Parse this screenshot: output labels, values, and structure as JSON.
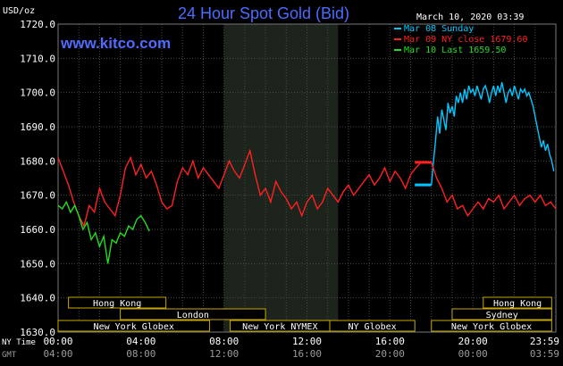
{
  "chart_data": {
    "type": "line",
    "title": "24 Hour Spot Gold (Bid)",
    "brand": "www.kitco.com",
    "ylabel": "USD/oz",
    "date_label": "March 10, 2020 03:39",
    "ylim": [
      1630,
      1720
    ],
    "yticks": [
      "1720.0",
      "1710.0",
      "1700.0",
      "1690.0",
      "1680.0",
      "1670.0",
      "1660.0",
      "1650.0",
      "1640.0",
      "1630.0"
    ],
    "xlim": [
      0,
      24
    ],
    "grid": true,
    "legend_position": "top-right",
    "time_rows": [
      {
        "label": "NY Time",
        "ticks": [
          "00:00",
          "04:00",
          "08:00",
          "12:00",
          "16:00",
          "20:00",
          "23:59"
        ]
      },
      {
        "label": "GMT",
        "ticks": [
          "04:00",
          "08:00",
          "12:00",
          "16:00",
          "20:00",
          "00:00",
          "03:59"
        ]
      }
    ],
    "shaded_hours": [
      8.0,
      13.5
    ],
    "legend": [
      {
        "text": "Mar 08 Sunday",
        "color": "#00c8ff"
      },
      {
        "text": "Mar 09 NY close 1679.60",
        "color": "#ff2020"
      },
      {
        "text": "Mar 10 Last 1659.50",
        "color": "#22dd22"
      }
    ],
    "sessions": [
      {
        "name": "Hong Kong",
        "row": 0,
        "start": 0.5,
        "end": 5.2
      },
      {
        "name": "London",
        "row": 1,
        "start": 3.0,
        "end": 10.0
      },
      {
        "name": "New York Globex",
        "row": 2,
        "start": 0.0,
        "end": 7.3
      },
      {
        "name": "New York NYMEX",
        "row": 2,
        "start": 8.3,
        "end": 13.1
      },
      {
        "name": "NY Globex",
        "row": 2,
        "start": 13.1,
        "end": 17.2
      },
      {
        "name": "Hong Kong",
        "row": 0,
        "start": 20.5,
        "end": 23.8
      },
      {
        "name": "Sydney",
        "row": 1,
        "start": 19.0,
        "end": 23.8
      },
      {
        "name": "New York Globex",
        "row": 2,
        "start": 18.0,
        "end": 23.8
      }
    ],
    "series": [
      {
        "name": "Mar 08 Sunday",
        "color": "#00c8ff",
        "x": [
          18.0,
          18.1,
          18.2,
          18.3,
          18.4,
          18.5,
          18.6,
          18.7,
          18.8,
          18.9,
          19.0,
          19.1,
          19.2,
          19.3,
          19.4,
          19.5,
          19.6,
          19.7,
          19.8,
          19.9,
          20.0,
          20.1,
          20.2,
          20.3,
          20.4,
          20.5,
          20.6,
          20.7,
          20.8,
          20.9,
          21.0,
          21.1,
          21.2,
          21.3,
          21.4,
          21.5,
          21.6,
          21.7,
          21.8,
          21.9,
          22.0,
          22.1,
          22.2,
          22.3,
          22.4,
          22.5,
          22.6,
          22.7,
          22.8,
          22.9,
          23.0,
          23.1,
          23.2,
          23.3,
          23.4,
          23.5,
          23.6,
          23.7,
          23.8,
          23.9
        ],
        "y": [
          1673,
          1680,
          1686,
          1693,
          1688,
          1695,
          1692,
          1689,
          1697,
          1694,
          1696,
          1693,
          1699,
          1697,
          1700,
          1697,
          1701,
          1698,
          1702,
          1700,
          1701,
          1699,
          1702,
          1700,
          1698,
          1701,
          1702,
          1700,
          1697,
          1700,
          1702,
          1699,
          1702,
          1700,
          1703,
          1700,
          1697,
          1700,
          1701,
          1699,
          1702,
          1700,
          1698,
          1701,
          1700,
          1701,
          1699,
          1700,
          1698,
          1696,
          1693,
          1690,
          1687,
          1684,
          1686,
          1683,
          1685,
          1682,
          1680,
          1677
        ]
      },
      {
        "name": "Mar 09 NY close 1679.60",
        "color": "#ff2020",
        "x": [
          0.0,
          0.25,
          0.5,
          0.75,
          1.0,
          1.25,
          1.5,
          1.75,
          2.0,
          2.25,
          2.5,
          2.75,
          3.0,
          3.25,
          3.5,
          3.75,
          4.0,
          4.25,
          4.5,
          4.75,
          5.0,
          5.25,
          5.5,
          5.75,
          6.0,
          6.25,
          6.5,
          6.75,
          7.0,
          7.25,
          7.5,
          7.75,
          8.0,
          8.25,
          8.5,
          8.75,
          9.0,
          9.25,
          9.5,
          9.75,
          10.0,
          10.25,
          10.5,
          10.75,
          11.0,
          11.25,
          11.5,
          11.75,
          12.0,
          12.25,
          12.5,
          12.75,
          13.0,
          13.25,
          13.5,
          13.75,
          14.0,
          14.25,
          14.5,
          14.75,
          15.0,
          15.25,
          15.5,
          15.75,
          16.0,
          16.25,
          16.5,
          16.75,
          17.0,
          17.25,
          17.5,
          17.75,
          18.0,
          18.25,
          18.5,
          18.75,
          19.0,
          19.25,
          19.5,
          19.75,
          20.0,
          20.25,
          20.5,
          20.75,
          21.0,
          21.25,
          21.5,
          21.75,
          22.0,
          22.25,
          22.5,
          22.75,
          23.0,
          23.25,
          23.5,
          23.75,
          24.0
        ],
        "y": [
          1681,
          1677,
          1673,
          1668,
          1664,
          1661,
          1667,
          1665,
          1672,
          1668,
          1666,
          1664,
          1670,
          1678,
          1681,
          1676,
          1679,
          1675,
          1677,
          1673,
          1668,
          1666,
          1667,
          1674,
          1678,
          1676,
          1680,
          1675,
          1678,
          1676,
          1674,
          1672,
          1676,
          1680,
          1677,
          1675,
          1679,
          1683,
          1676,
          1670,
          1672,
          1668,
          1674,
          1671,
          1669,
          1666,
          1668,
          1664,
          1668,
          1670,
          1666,
          1668,
          1672,
          1670,
          1668,
          1671,
          1673,
          1670,
          1672,
          1674,
          1676,
          1673,
          1675,
          1678,
          1674,
          1677,
          1675,
          1672,
          1676,
          1678,
          1679.6,
          1679.6,
          1679.6,
          1675,
          1672,
          1668,
          1670,
          1666,
          1667,
          1664,
          1666,
          1668,
          1666,
          1669,
          1668,
          1670,
          1666,
          1668,
          1670,
          1667,
          1669,
          1670,
          1668,
          1670,
          1667,
          1668,
          1666
        ]
      },
      {
        "name": "Mar 10 Last 1659.50",
        "color": "#22dd22",
        "x": [
          0.0,
          0.2,
          0.4,
          0.6,
          0.8,
          1.0,
          1.2,
          1.4,
          1.6,
          1.8,
          2.0,
          2.2,
          2.4,
          2.6,
          2.8,
          3.0,
          3.2,
          3.4,
          3.6,
          3.8,
          4.0,
          4.2,
          4.4
        ],
        "y": [
          1667,
          1666,
          1668,
          1665,
          1667,
          1664,
          1660,
          1662,
          1657,
          1659,
          1655,
          1658,
          1650,
          1657,
          1656,
          1659,
          1658,
          1661,
          1660,
          1663,
          1664,
          1662,
          1659.5
        ]
      }
    ],
    "markers": [
      {
        "color": "#00c8ff",
        "x0": 17.2,
        "x1": 18.0,
        "y": 1673
      },
      {
        "color": "#ff2020",
        "x0": 17.2,
        "x1": 18.0,
        "y": 1679.6
      }
    ]
  }
}
